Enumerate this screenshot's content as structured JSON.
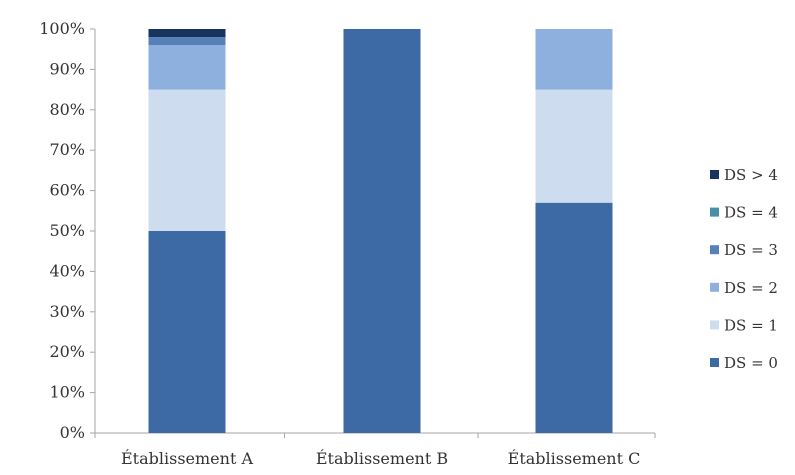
{
  "chart_data": {
    "type": "bar",
    "stacked": true,
    "categories": [
      "Établissement A",
      "Établissement B",
      "Établissement C"
    ],
    "series": [
      {
        "name": "DS = 0",
        "color": "#3d6aa5",
        "values": [
          50,
          100,
          57
        ]
      },
      {
        "name": "DS = 1",
        "color": "#cddcef",
        "values": [
          35,
          0,
          28
        ]
      },
      {
        "name": "DS = 2",
        "color": "#8db0df",
        "values": [
          11,
          0,
          15
        ]
      },
      {
        "name": "DS = 3",
        "color": "#5880b8",
        "values": [
          2,
          0,
          0
        ]
      },
      {
        "name": "DS = 4",
        "color": "#4a8fa8",
        "values": [
          0,
          0,
          0
        ]
      },
      {
        "name": "DS > 4",
        "color": "#17345e",
        "values": [
          2,
          0,
          0
        ]
      }
    ],
    "yaxis": {
      "min": 0,
      "max": 100,
      "ticks": [
        "0%",
        "10%",
        "20%",
        "30%",
        "40%",
        "50%",
        "60%",
        "70%",
        "80%",
        "90%",
        "100%"
      ]
    },
    "grid": false,
    "legend": {
      "position": "right",
      "order": [
        "DS > 4",
        "DS = 4",
        "DS = 3",
        "DS = 2",
        "DS = 1",
        "DS = 0"
      ]
    },
    "title": "",
    "xlabel": "",
    "ylabel": ""
  }
}
